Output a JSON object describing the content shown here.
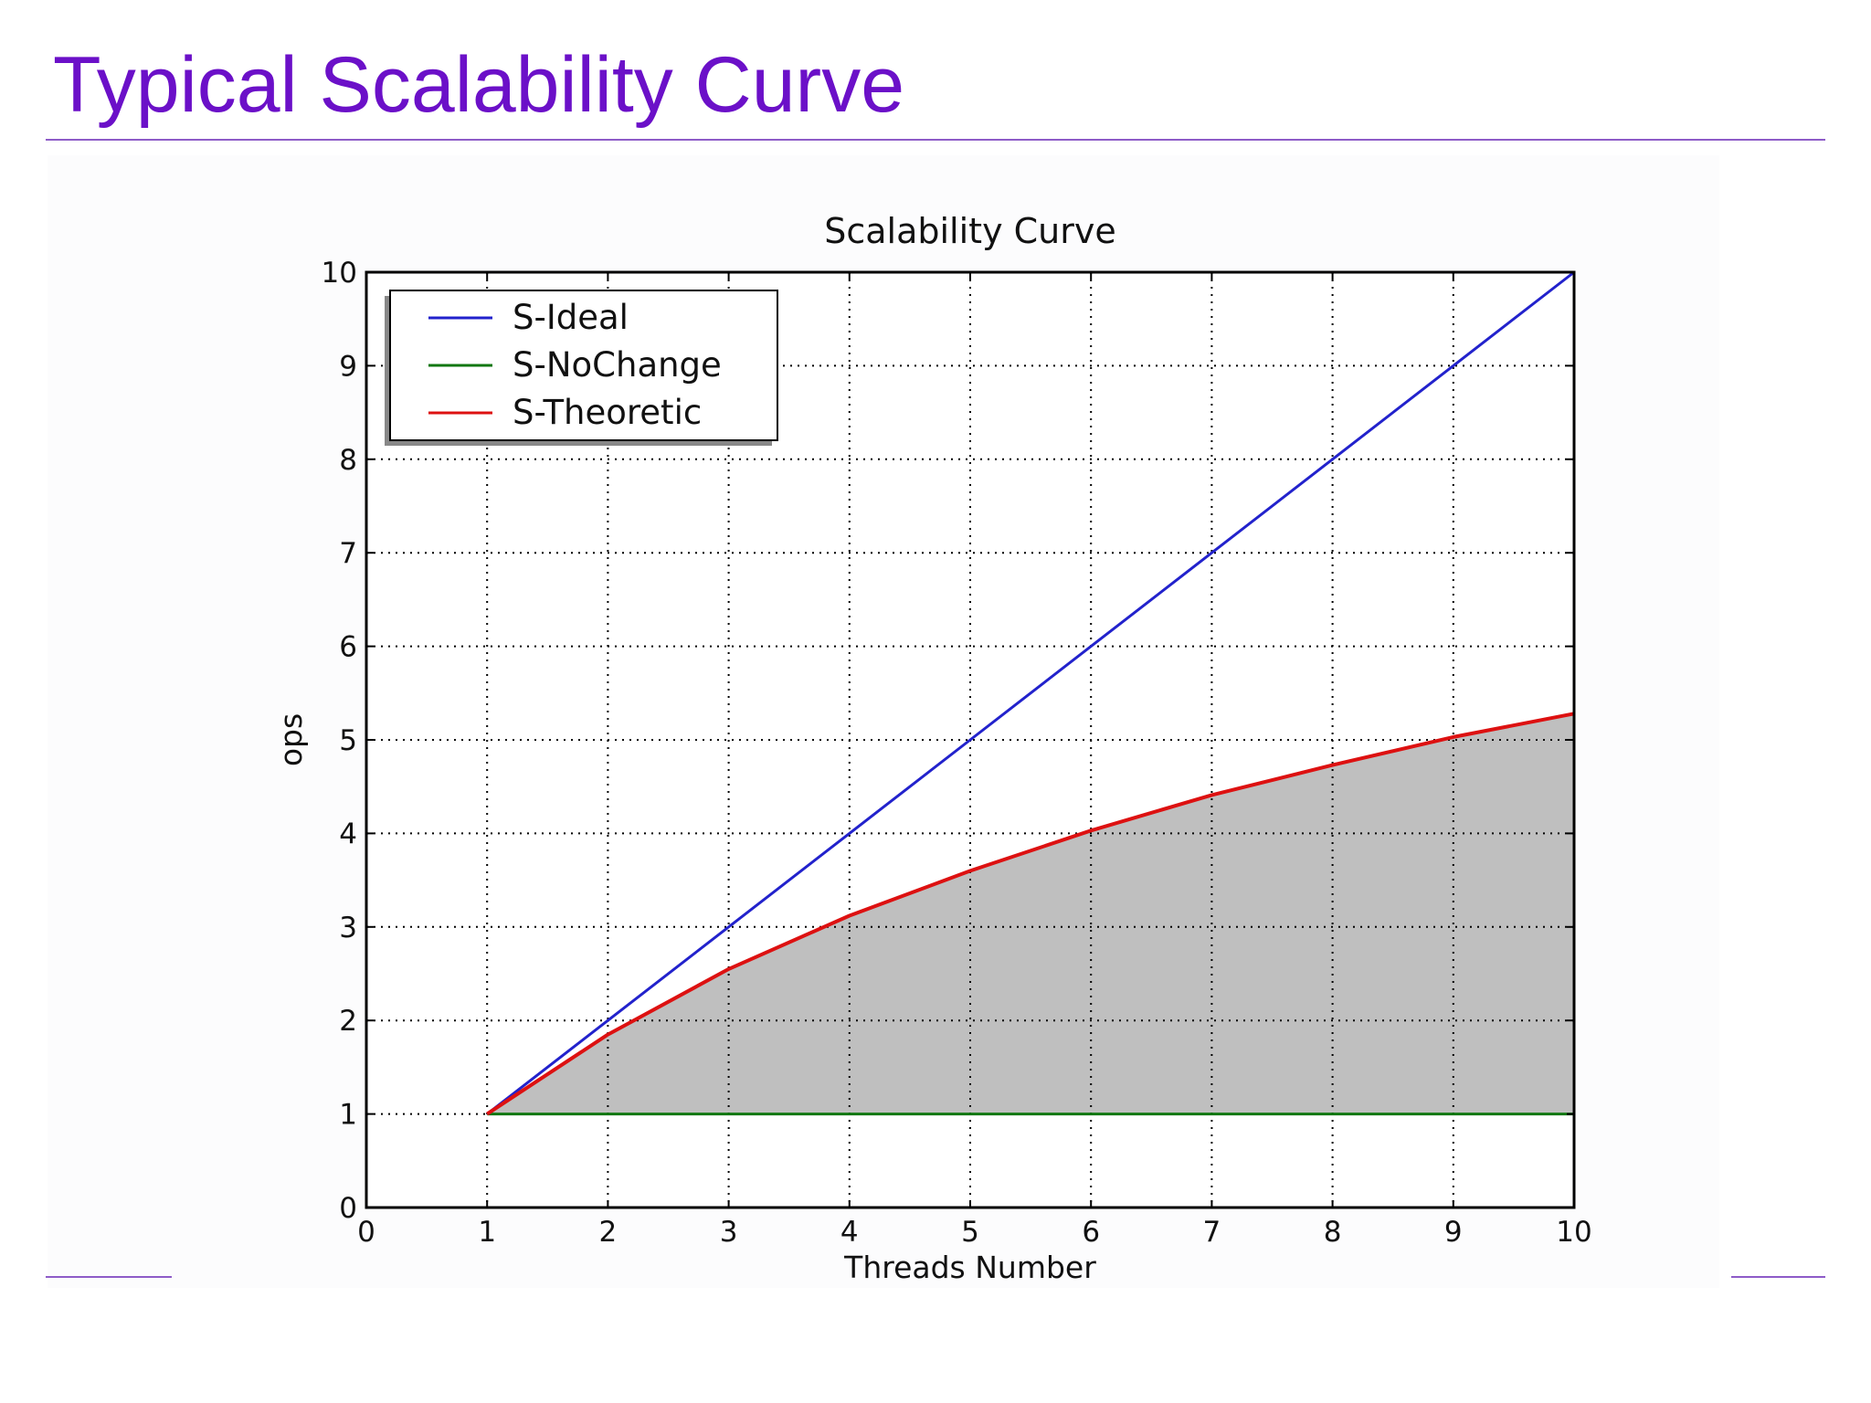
{
  "slide": {
    "title": "Typical Scalability Curve"
  },
  "colors": {
    "title": "#6b10c8",
    "rule": "#8e5cc8",
    "ideal": "#2222cc",
    "nochange": "#117711",
    "theoretic": "#dd1111",
    "fill": "#bfbfbf"
  },
  "chart_data": {
    "type": "line",
    "title": "Scalability Curve",
    "xlabel": "Threads Number",
    "ylabel": "ops",
    "xlim": [
      0,
      10
    ],
    "ylim": [
      0,
      10
    ],
    "xticks": [
      "0",
      "1",
      "2",
      "3",
      "4",
      "5",
      "6",
      "7",
      "8",
      "9",
      "10"
    ],
    "yticks": [
      "0",
      "1",
      "2",
      "3",
      "4",
      "5",
      "6",
      "7",
      "8",
      "9",
      "10"
    ],
    "grid": true,
    "legend_position": "top-left",
    "shaded_region": {
      "between": [
        "S-NoChange",
        "S-Theoretic"
      ],
      "color": "#bfbfbf"
    },
    "series": [
      {
        "name": "S-Ideal",
        "color": "#2222cc",
        "x": [
          1,
          2,
          3,
          4,
          5,
          6,
          7,
          8,
          9,
          10
        ],
        "y": [
          1,
          2,
          3,
          4,
          5,
          6,
          7,
          8,
          9,
          10
        ]
      },
      {
        "name": "S-NoChange",
        "color": "#117711",
        "x": [
          1,
          2,
          3,
          4,
          5,
          6,
          7,
          8,
          9,
          10
        ],
        "y": [
          1,
          1,
          1,
          1,
          1,
          1,
          1,
          1,
          1,
          1
        ]
      },
      {
        "name": "S-Theoretic",
        "color": "#dd1111",
        "x": [
          1,
          2,
          3,
          4,
          5,
          6,
          7,
          8,
          9,
          10
        ],
        "y": [
          1,
          1.85,
          2.55,
          3.12,
          3.6,
          4.03,
          4.41,
          4.73,
          5.03,
          5.28
        ]
      }
    ]
  }
}
